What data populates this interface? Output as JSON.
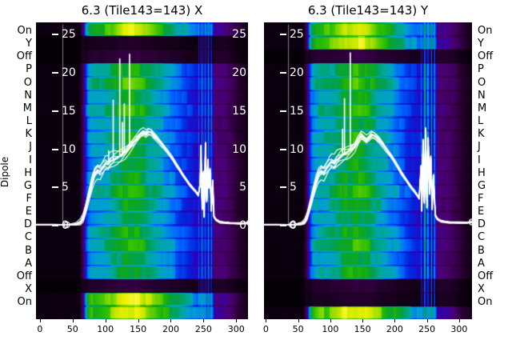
{
  "figure": {
    "ylabel": "Dipole",
    "background": "#ffffff"
  },
  "dipole_labels": [
    "On",
    "Y",
    "Off",
    "P",
    "O",
    "N",
    "M",
    "L",
    "K",
    "J",
    "I",
    "H",
    "G",
    "F",
    "E",
    "D",
    "C",
    "B",
    "A",
    "Off",
    "X",
    "On"
  ],
  "x_ticks": [
    0,
    50,
    100,
    150,
    200,
    250,
    300
  ],
  "value_ticks": [
    25,
    20,
    15,
    10,
    5,
    0
  ],
  "colormap_stops": [
    [
      0,
      "#000000"
    ],
    [
      0.08,
      "#2d0038"
    ],
    [
      0.14,
      "#4b0076"
    ],
    [
      0.2,
      "#2a00c0"
    ],
    [
      0.26,
      "#0028e0"
    ],
    [
      0.32,
      "#0066ff"
    ],
    [
      0.38,
      "#00a0d0"
    ],
    [
      0.44,
      "#00a898"
    ],
    [
      0.5,
      "#00a050"
    ],
    [
      0.56,
      "#10a818"
    ],
    [
      0.62,
      "#30c000"
    ],
    [
      0.7,
      "#7fd800"
    ],
    [
      0.78,
      "#c8e800"
    ],
    [
      0.86,
      "#eef000"
    ],
    [
      1,
      "#ffff80"
    ]
  ],
  "chart_data": [
    {
      "type": "heatmap+line",
      "title": "6.3 (Tile143=143) X",
      "xlim": [
        -6,
        318
      ],
      "value_range": [
        -12.2,
        26.57
      ],
      "inner_ticks": {
        "left": true,
        "right": true
      },
      "row_mult": [
        1.42,
        0.1,
        0.16,
        1.02,
        1.12,
        0.96,
        1.05,
        0.92,
        1.0,
        0.97,
        0.93,
        0.97,
        1.06,
        0.96,
        0.91,
        1.01,
        1.06,
        0.93,
        0.98,
        0.15,
        1.52,
        1.47
      ],
      "col_profile": [
        [
          -6,
          0.02
        ],
        [
          60,
          0.02
        ],
        [
          64,
          0.08
        ],
        [
          67,
          0.14
        ],
        [
          70,
          0.26
        ],
        [
          74,
          0.36
        ],
        [
          80,
          0.41
        ],
        [
          92,
          0.43
        ],
        [
          104,
          0.45
        ],
        [
          112,
          0.48
        ],
        [
          120,
          0.53
        ],
        [
          128,
          0.57
        ],
        [
          140,
          0.59
        ],
        [
          150,
          0.57
        ],
        [
          158,
          0.53
        ],
        [
          168,
          0.48
        ],
        [
          180,
          0.43
        ],
        [
          192,
          0.39
        ],
        [
          204,
          0.35
        ],
        [
          214,
          0.31
        ],
        [
          224,
          0.28
        ],
        [
          234,
          0.25
        ],
        [
          240,
          0.23
        ],
        [
          263,
          0.23
        ],
        [
          267,
          0.14
        ],
        [
          282,
          0.135
        ],
        [
          295,
          0.1
        ],
        [
          306,
          0.06
        ],
        [
          318,
          0.03
        ]
      ],
      "stripes": [
        [
          242.5,
          1.6,
          0.34
        ],
        [
          245.5,
          1.2,
          0.22
        ],
        [
          247.5,
          1.8,
          0.42
        ],
        [
          250,
          1.2,
          0.28
        ],
        [
          252.5,
          2.0,
          0.36
        ],
        [
          255.5,
          1.2,
          0.22
        ],
        [
          257.5,
          1.8,
          0.44
        ],
        [
          260,
          1.4,
          0.3
        ],
        [
          262,
          1.6,
          0.38
        ]
      ],
      "line": {
        "points": [
          [
            -6,
            0.15
          ],
          [
            20,
            0.15
          ],
          [
            41,
            0.12
          ],
          [
            55,
            0.2
          ],
          [
            62,
            0.45
          ],
          [
            66,
            1.0
          ],
          [
            70,
            2.2
          ],
          [
            75,
            4.0
          ],
          [
            80,
            5.8
          ],
          [
            84,
            6.9
          ],
          [
            88,
            7.3
          ],
          [
            92,
            7.1
          ],
          [
            96,
            7.6
          ],
          [
            100,
            8.1
          ],
          [
            104,
            8.0
          ],
          [
            108,
            8.4
          ],
          [
            113,
            8.7
          ],
          [
            118,
            8.9
          ],
          [
            124,
            9.2
          ],
          [
            130,
            9.6
          ],
          [
            136,
            10.2
          ],
          [
            142,
            10.8
          ],
          [
            148,
            11.4
          ],
          [
            153,
            11.9
          ],
          [
            158,
            12.2
          ],
          [
            162,
            12.0
          ],
          [
            166,
            12.3
          ],
          [
            170,
            12.2
          ],
          [
            174,
            11.8
          ],
          [
            178,
            11.5
          ],
          [
            183,
            11.0
          ],
          [
            188,
            10.5
          ],
          [
            193,
            9.9
          ],
          [
            198,
            9.3
          ],
          [
            203,
            8.7
          ],
          [
            208,
            8.0
          ],
          [
            213,
            7.4
          ],
          [
            218,
            6.7
          ],
          [
            223,
            6.1
          ],
          [
            228,
            5.5
          ],
          [
            233,
            5.0
          ],
          [
            238,
            4.5
          ],
          [
            242,
            4.0
          ],
          [
            245,
            5.5
          ],
          [
            246,
            10.4
          ],
          [
            248,
            2.2
          ],
          [
            250,
            7.0
          ],
          [
            251,
            1.2
          ],
          [
            253,
            10.8
          ],
          [
            255,
            3.2
          ],
          [
            257,
            8.6
          ],
          [
            258,
            5.0
          ],
          [
            260,
            7.4
          ],
          [
            262,
            2.0
          ],
          [
            264,
            5.9
          ],
          [
            266,
            1.2
          ],
          [
            269,
            0.8
          ],
          [
            275,
            0.5
          ],
          [
            290,
            0.35
          ],
          [
            305,
            0.3
          ],
          [
            315,
            0.35
          ],
          [
            321,
            0.4
          ]
        ],
        "spikes": [
          [
            105,
            9.8
          ],
          [
            112,
            16.4
          ],
          [
            122,
            21.8
          ],
          [
            126,
            13.5
          ],
          [
            129,
            15.9
          ],
          [
            137,
            22.4
          ]
        ],
        "markers": [
          [
            41,
            0.12
          ],
          [
            321,
            0.4
          ]
        ]
      }
    },
    {
      "type": "heatmap+line",
      "title": "6.3 (Tile143=143) Y",
      "xlim": [
        -3,
        320
      ],
      "value_range": [
        -12.2,
        26.57
      ],
      "inner_ticks": {
        "left": true,
        "right": false
      },
      "row_mult": [
        1.4,
        1.46,
        0.16,
        1.02,
        1.1,
        0.96,
        1.05,
        0.93,
        1.0,
        0.97,
        0.93,
        0.97,
        1.06,
        0.96,
        0.91,
        1.01,
        1.06,
        0.93,
        0.98,
        0.15,
        0.11,
        1.52
      ],
      "col_profile": [
        [
          -3,
          0.02
        ],
        [
          58,
          0.02
        ],
        [
          62,
          0.08
        ],
        [
          65,
          0.14
        ],
        [
          68,
          0.26
        ],
        [
          72,
          0.37
        ],
        [
          78,
          0.42
        ],
        [
          90,
          0.44
        ],
        [
          102,
          0.46
        ],
        [
          112,
          0.5
        ],
        [
          122,
          0.55
        ],
        [
          132,
          0.58
        ],
        [
          144,
          0.6
        ],
        [
          154,
          0.57
        ],
        [
          163,
          0.52
        ],
        [
          173,
          0.47
        ],
        [
          185,
          0.42
        ],
        [
          197,
          0.38
        ],
        [
          209,
          0.33
        ],
        [
          219,
          0.29
        ],
        [
          229,
          0.26
        ],
        [
          237,
          0.24
        ],
        [
          263,
          0.24
        ],
        [
          267,
          0.14
        ],
        [
          283,
          0.135
        ],
        [
          296,
          0.1
        ],
        [
          307,
          0.06
        ],
        [
          320,
          0.03
        ]
      ],
      "stripes": [
        [
          241,
          1.6,
          0.36
        ],
        [
          244,
          1.4,
          0.24
        ],
        [
          246.5,
          2.0,
          0.48
        ],
        [
          249.5,
          1.4,
          0.3
        ],
        [
          252,
          2.0,
          0.4
        ],
        [
          255,
          1.4,
          0.26
        ],
        [
          257.5,
          2.0,
          0.5
        ],
        [
          260.5,
          1.4,
          0.32
        ],
        [
          262.5,
          1.8,
          0.42
        ]
      ],
      "line": {
        "points": [
          [
            -3,
            0.15
          ],
          [
            20,
            0.15
          ],
          [
            41,
            0.12
          ],
          [
            55,
            0.25
          ],
          [
            60,
            0.5
          ],
          [
            64,
            1.2
          ],
          [
            68,
            2.5
          ],
          [
            73,
            4.2
          ],
          [
            78,
            5.8
          ],
          [
            82,
            6.8
          ],
          [
            86,
            7.2
          ],
          [
            90,
            7.0
          ],
          [
            94,
            7.5
          ],
          [
            98,
            8.0
          ],
          [
            102,
            8.3
          ],
          [
            106,
            8.1
          ],
          [
            110,
            8.6
          ],
          [
            115,
            9.0
          ],
          [
            120,
            9.3
          ],
          [
            125,
            9.5
          ],
          [
            130,
            9.8
          ],
          [
            134,
            10.1
          ],
          [
            138,
            10.4
          ],
          [
            143,
            11.2
          ],
          [
            148,
            11.8
          ],
          [
            152,
            11.5
          ],
          [
            156,
            11.2
          ],
          [
            160,
            11.5
          ],
          [
            164,
            11.9
          ],
          [
            168,
            11.8
          ],
          [
            172,
            11.5
          ],
          [
            176,
            11.2
          ],
          [
            181,
            10.7
          ],
          [
            186,
            10.1
          ],
          [
            191,
            9.5
          ],
          [
            196,
            8.9
          ],
          [
            201,
            8.2
          ],
          [
            206,
            7.5
          ],
          [
            211,
            6.8
          ],
          [
            216,
            6.2
          ],
          [
            221,
            5.6
          ],
          [
            226,
            5.0
          ],
          [
            231,
            4.5
          ],
          [
            235,
            4.0
          ],
          [
            238,
            3.6
          ],
          [
            241,
            7.8
          ],
          [
            242,
            2.0
          ],
          [
            244,
            11.2
          ],
          [
            246,
            3.0
          ],
          [
            248,
            12.7
          ],
          [
            250,
            2.4
          ],
          [
            252,
            11.4
          ],
          [
            254,
            4.2
          ],
          [
            256,
            9.0
          ],
          [
            258,
            2.2
          ],
          [
            260,
            6.6
          ],
          [
            263,
            1.4
          ],
          [
            266,
            0.9
          ],
          [
            272,
            0.6
          ],
          [
            285,
            0.45
          ],
          [
            300,
            0.4
          ],
          [
            312,
            0.4
          ],
          [
            320,
            0.5
          ]
        ],
        "spikes": [
          [
            119,
            12.6
          ],
          [
            122,
            16.6
          ],
          [
            131,
            22.6
          ]
        ],
        "markers": [
          [
            41,
            0.12
          ],
          [
            320,
            0.5
          ]
        ]
      }
    }
  ]
}
